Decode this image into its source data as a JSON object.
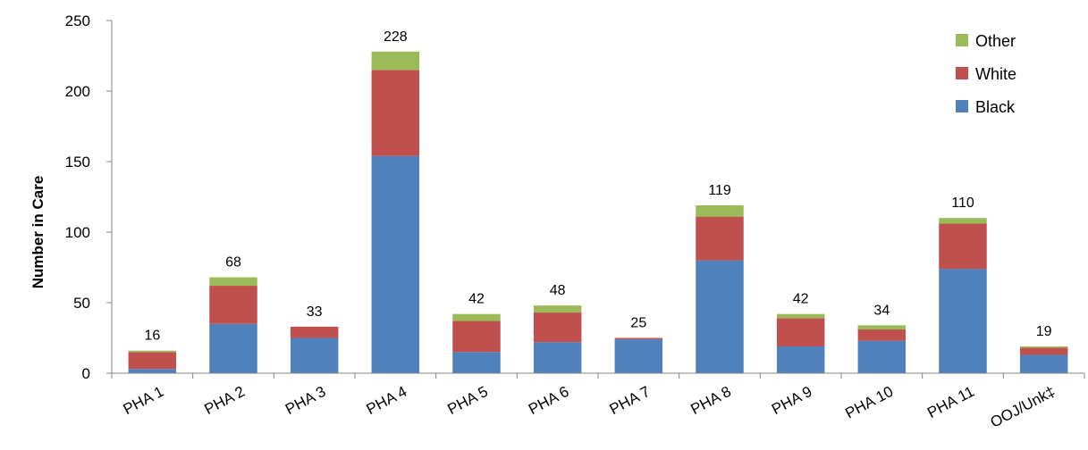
{
  "chart_data": {
    "type": "bar",
    "stacked": true,
    "categories": [
      "PHA 1",
      "PHA 2",
      "PHA 3",
      "PHA 4",
      "PHA 5",
      "PHA 6",
      "PHA 7",
      "PHA 8",
      "PHA 9",
      "PHA 10",
      "PHA 11",
      "OOJ/Unk‡"
    ],
    "series": [
      {
        "name": "Black",
        "color": "#4F81BD",
        "values": [
          3,
          35,
          25,
          154,
          15,
          22,
          24,
          80,
          19,
          23,
          74,
          13
        ]
      },
      {
        "name": "White",
        "color": "#C0504D",
        "values": [
          12,
          27,
          8,
          61,
          22,
          21,
          1,
          31,
          20,
          8,
          32,
          5
        ]
      },
      {
        "name": "Other",
        "color": "#9BBB59",
        "values": [
          1,
          6,
          0,
          13,
          5,
          5,
          0,
          8,
          3,
          3,
          4,
          1
        ]
      }
    ],
    "totals": [
      "16",
      "68",
      "33",
      "228",
      "42",
      "48",
      "25",
      "119",
      "42",
      "34",
      "110",
      "19"
    ],
    "ylabel": "Number in Care",
    "ylim": [
      0,
      250
    ],
    "yticks": [
      "0",
      "50",
      "100",
      "150",
      "200",
      "250"
    ],
    "grid": false,
    "legend_position": "top-right",
    "legend_order": [
      "Other",
      "White",
      "Black"
    ]
  }
}
